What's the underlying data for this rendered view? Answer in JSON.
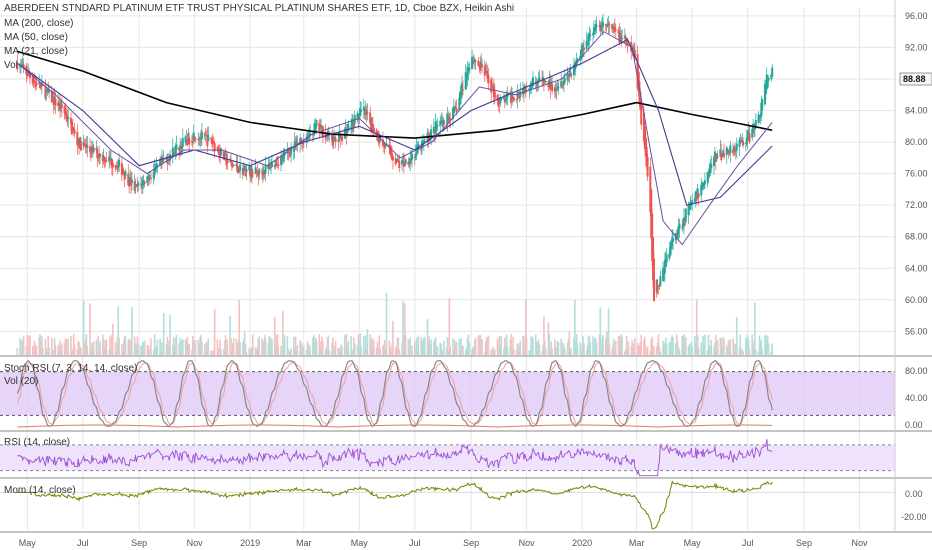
{
  "title": "ABERDEEN STNDARD PLATINUM ETF TRUST PHYSICAL PLATINUM SHARES ETF, 1D, Cboe BZX, Heikin Ashi",
  "indicators_main": [
    "MA (200, close)",
    "MA (50, close)",
    "MA (21, close)",
    "Vol"
  ],
  "last_price_label": "88.88",
  "colors": {
    "up": "#26a69a",
    "down": "#ef5350",
    "ma200": "#000000",
    "ma50": "#3d3d8f",
    "ma21": "#6a4fa0",
    "stoch_fill": "#e1c9f7",
    "stoch_line": "#888888",
    "rsi_fill": "#efe3fb",
    "rsi_line": "#9c4fd6",
    "mom_line": "#808000",
    "grid": "#e6e6e6",
    "pane_sep": "#888888"
  },
  "panes": {
    "stoch": {
      "label": "Stoch RSI (7, 3, 14, 14, close)",
      "label2": "Vol (20)",
      "ticks": [
        "80.00",
        "40.00",
        "0.00"
      ]
    },
    "rsi": {
      "label": "RSI (14, close)",
      "ticks": []
    },
    "mom": {
      "label": "Mom (14, close)",
      "ticks": [
        "0.00",
        "-20.00"
      ]
    }
  },
  "chart_data": {
    "type": "candlestick",
    "title": "ABERDEEN STNDARD PLATINUM ETF TRUST PHYSICAL PLATINUM SHARES ETF, 1D, Cboe BZX, Heikin Ashi",
    "x_ticks": [
      "May",
      "Jul",
      "Sep",
      "Nov",
      "2019",
      "Mar",
      "May",
      "Jul",
      "Sep",
      "Nov",
      "2020",
      "Mar",
      "May",
      "Jul",
      "Sep",
      "Nov"
    ],
    "y_ticks": [
      "96.00",
      "92.00",
      "88.00",
      "84.00",
      "80.00",
      "76.00",
      "72.00",
      "68.00",
      "64.00",
      "60.00",
      "56.00"
    ],
    "ylim": [
      53,
      97
    ],
    "price_path": [
      [
        "2018-04-20",
        90
      ],
      [
        "2018-05-15",
        87
      ],
      [
        "2018-06-10",
        84
      ],
      [
        "2018-06-25",
        80
      ],
      [
        "2018-07-10",
        79
      ],
      [
        "2018-08-10",
        77
      ],
      [
        "2018-08-28",
        74
      ],
      [
        "2018-09-15",
        76
      ],
      [
        "2018-10-10",
        79
      ],
      [
        "2018-11-01",
        81
      ],
      [
        "2018-11-20",
        80
      ],
      [
        "2018-12-10",
        77
      ],
      [
        "2019-01-10",
        76
      ],
      [
        "2019-02-05",
        78
      ],
      [
        "2019-02-25",
        80
      ],
      [
        "2019-03-15",
        82
      ],
      [
        "2019-04-05",
        80
      ],
      [
        "2019-04-20",
        82
      ],
      [
        "2019-05-05",
        84
      ],
      [
        "2019-05-25",
        80
      ],
      [
        "2019-06-15",
        77
      ],
      [
        "2019-07-05",
        79
      ],
      [
        "2019-07-25",
        82
      ],
      [
        "2019-08-15",
        84
      ],
      [
        "2019-09-01",
        91
      ],
      [
        "2019-09-15",
        89
      ],
      [
        "2019-10-01",
        85
      ],
      [
        "2019-10-20",
        86
      ],
      [
        "2019-11-10",
        88
      ],
      [
        "2019-12-01",
        87
      ],
      [
        "2019-12-20",
        89
      ],
      [
        "2020-01-10",
        94
      ],
      [
        "2020-01-25",
        95
      ],
      [
        "2020-02-15",
        93
      ],
      [
        "2020-02-28",
        91
      ],
      [
        "2020-03-05",
        84
      ],
      [
        "2020-03-15",
        74
      ],
      [
        "2020-03-20",
        60
      ],
      [
        "2020-03-28",
        63
      ],
      [
        "2020-04-10",
        68
      ],
      [
        "2020-04-25",
        71
      ],
      [
        "2020-05-10",
        74
      ],
      [
        "2020-05-25",
        78
      ],
      [
        "2020-06-10",
        79
      ],
      [
        "2020-06-25",
        80
      ],
      [
        "2020-07-05",
        81
      ],
      [
        "2020-07-15",
        84
      ],
      [
        "2020-07-22",
        88
      ],
      [
        "2020-07-28",
        88.88
      ]
    ],
    "ma200": [
      [
        "2018-04-20",
        91.5
      ],
      [
        "2018-07-01",
        89
      ],
      [
        "2018-10-01",
        85
      ],
      [
        "2019-01-01",
        82.5
      ],
      [
        "2019-04-01",
        81
      ],
      [
        "2019-07-01",
        80.5
      ],
      [
        "2019-10-01",
        81.5
      ],
      [
        "2020-01-01",
        83.5
      ],
      [
        "2020-03-01",
        85
      ],
      [
        "2020-05-01",
        83.5
      ],
      [
        "2020-06-15",
        82.5
      ],
      [
        "2020-07-28",
        81.5
      ]
    ],
    "ma50": [
      [
        "2018-04-20",
        90
      ],
      [
        "2018-07-01",
        84
      ],
      [
        "2018-09-01",
        77
      ],
      [
        "2018-11-01",
        79
      ],
      [
        "2019-01-01",
        77
      ],
      [
        "2019-03-01",
        80
      ],
      [
        "2019-05-01",
        82
      ],
      [
        "2019-07-01",
        79
      ],
      [
        "2019-09-01",
        84
      ],
      [
        "2019-11-01",
        87
      ],
      [
        "2020-01-01",
        90
      ],
      [
        "2020-02-20",
        93
      ],
      [
        "2020-03-25",
        84
      ],
      [
        "2020-04-25",
        72
      ],
      [
        "2020-06-01",
        73
      ],
      [
        "2020-07-28",
        79.5
      ]
    ],
    "ma21": [
      [
        "2018-04-20",
        90
      ],
      [
        "2018-06-01",
        86
      ],
      [
        "2018-08-01",
        79
      ],
      [
        "2018-09-10",
        76
      ],
      [
        "2018-10-20",
        79
      ],
      [
        "2018-12-01",
        79
      ],
      [
        "2019-01-20",
        77
      ],
      [
        "2019-03-10",
        81
      ],
      [
        "2019-05-01",
        83
      ],
      [
        "2019-06-15",
        78
      ],
      [
        "2019-07-20",
        80
      ],
      [
        "2019-09-10",
        87
      ],
      [
        "2019-10-20",
        86
      ],
      [
        "2019-12-10",
        88
      ],
      [
        "2020-01-25",
        94
      ],
      [
        "2020-02-25",
        92
      ],
      [
        "2020-03-30",
        70
      ],
      [
        "2020-04-20",
        67
      ],
      [
        "2020-05-20",
        72
      ],
      [
        "2020-06-20",
        77
      ],
      [
        "2020-07-28",
        82.5
      ]
    ],
    "stoch_rsi": {
      "upper_band": 80,
      "lower_band": 20,
      "range": [
        0,
        100
      ]
    },
    "rsi": {
      "upper_band": 70,
      "lower_band": 30,
      "range": [
        20,
        90
      ]
    },
    "momentum": {
      "range": [
        -28,
        10
      ],
      "zero": 0
    }
  }
}
